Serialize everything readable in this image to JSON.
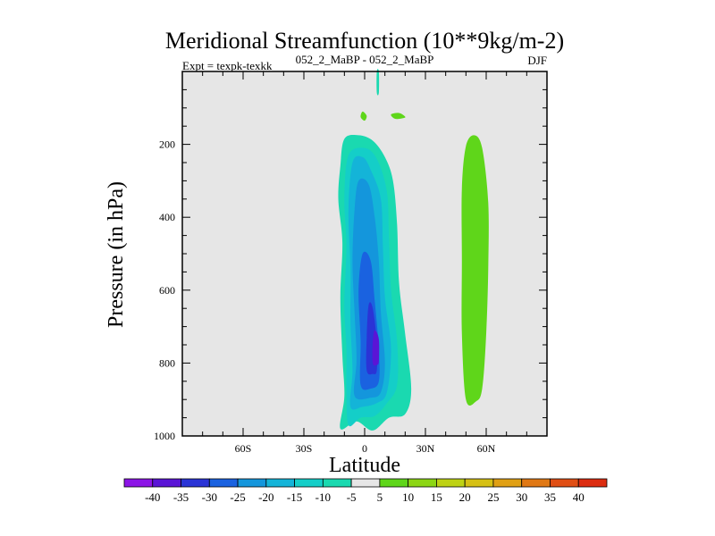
{
  "chart_data": {
    "type": "contour",
    "title": "Meridional Streamfunction (10**9kg/m-2)",
    "subtitle_left": "Expt = texpk-texkk",
    "subtitle_center": "052_2_MaBP - 052_2_MaBP",
    "subtitle_right": "DJF",
    "xlabel": "Latitude",
    "ylabel": "Pressure (in hPa)",
    "xlim": [
      -90,
      90
    ],
    "ylim": [
      1000,
      0
    ],
    "x_ticks": [
      {
        "value": -60,
        "label": "60S"
      },
      {
        "value": -30,
        "label": "30S"
      },
      {
        "value": 0,
        "label": "0"
      },
      {
        "value": 30,
        "label": "30N"
      },
      {
        "value": 60,
        "label": "60N"
      }
    ],
    "y_ticks": [
      {
        "value": 200,
        "label": "200"
      },
      {
        "value": 400,
        "label": "400"
      },
      {
        "value": 600,
        "label": "600"
      },
      {
        "value": 800,
        "label": "800"
      },
      {
        "value": 1000,
        "label": "1000"
      }
    ],
    "colorbar": {
      "levels": [
        "-40",
        "-35",
        "-30",
        "-25",
        "-20",
        "-15",
        "-10",
        "-5",
        "5",
        "10",
        "15",
        "20",
        "25",
        "30",
        "35",
        "40"
      ],
      "colors": [
        "#8c14e6",
        "#5a14d6",
        "#2a34d6",
        "#1a62e0",
        "#1496dc",
        "#14b4d8",
        "#14cec8",
        "#1ad9b0",
        "#e6e6e6",
        "#5fd61a",
        "#8cd614",
        "#bed214",
        "#d6c014",
        "#e0a014",
        "#e07814",
        "#e04e14",
        "#dc2c10"
      ]
    },
    "background_color": "#e6e6e6",
    "contours": [
      {
        "level": "-5 to 0",
        "color": "#1ad9b0",
        "points": [
          [
            -12,
            980
          ],
          [
            -10,
            890
          ],
          [
            -11,
            780
          ],
          [
            -12,
            620
          ],
          [
            -11,
            470
          ],
          [
            -13,
            350
          ],
          [
            -12,
            260
          ],
          [
            -10,
            185
          ],
          [
            -3,
            175
          ],
          [
            4,
            190
          ],
          [
            10,
            235
          ],
          [
            14,
            300
          ],
          [
            16,
            420
          ],
          [
            17,
            580
          ],
          [
            20,
            720
          ],
          [
            23,
            870
          ],
          [
            20,
            940
          ],
          [
            12,
            950
          ],
          [
            4,
            985
          ],
          [
            -4,
            960
          ]
        ]
      },
      {
        "level": "-10 to -5",
        "color": "#14cec8",
        "points": [
          [
            -8,
            970
          ],
          [
            -9,
            870
          ],
          [
            -9,
            760
          ],
          [
            -10,
            640
          ],
          [
            -9,
            480
          ],
          [
            -10,
            350
          ],
          [
            -8,
            230
          ],
          [
            0,
            210
          ],
          [
            6,
            240
          ],
          [
            11,
            330
          ],
          [
            12,
            460
          ],
          [
            13,
            600
          ],
          [
            16,
            740
          ],
          [
            16,
            860
          ],
          [
            11,
            910
          ],
          [
            5,
            945
          ],
          [
            -2,
            950
          ]
        ]
      },
      {
        "level": "-15 to -10",
        "color": "#14b4d8",
        "points": [
          [
            -7,
            920
          ],
          [
            -6,
            820
          ],
          [
            -7,
            690
          ],
          [
            -7,
            540
          ],
          [
            -8,
            380
          ],
          [
            -6,
            250
          ],
          [
            -1,
            235
          ],
          [
            3,
            270
          ],
          [
            8,
            350
          ],
          [
            9,
            480
          ],
          [
            10,
            620
          ],
          [
            13,
            760
          ],
          [
            11,
            880
          ],
          [
            6,
            910
          ],
          [
            -1,
            920
          ]
        ]
      },
      {
        "level": "-20 to -15",
        "color": "#1496dc",
        "points": [
          [
            -5,
            890
          ],
          [
            -4,
            790
          ],
          [
            -5,
            660
          ],
          [
            -6,
            520
          ],
          [
            -5,
            380
          ],
          [
            -3,
            300
          ],
          [
            2,
            310
          ],
          [
            5,
            400
          ],
          [
            7,
            520
          ],
          [
            8,
            660
          ],
          [
            10,
            800
          ],
          [
            8,
            880
          ],
          [
            3,
            895
          ]
        ]
      },
      {
        "level": "-25 to -20",
        "color": "#1a62e0",
        "points": [
          [
            -2,
            860
          ],
          [
            -2,
            740
          ],
          [
            -3,
            600
          ],
          [
            -1,
            500
          ],
          [
            3,
            520
          ],
          [
            5,
            630
          ],
          [
            7,
            760
          ],
          [
            7,
            850
          ],
          [
            3,
            870
          ]
        ]
      },
      {
        "level": "-30 to -25",
        "color": "#2a34d6",
        "points": [
          [
            1,
            820
          ],
          [
            1,
            730
          ],
          [
            2,
            640
          ],
          [
            4,
            650
          ],
          [
            6,
            740
          ],
          [
            6,
            820
          ],
          [
            4,
            830
          ]
        ]
      },
      {
        "level": "-35 to -30",
        "color": "#5a14d6",
        "points": [
          [
            4,
            800
          ],
          [
            4,
            740
          ],
          [
            5,
            710
          ],
          [
            7,
            735
          ],
          [
            7,
            795
          ],
          [
            6,
            805
          ]
        ]
      },
      {
        "level": "5 to 10",
        "color": "#5fd61a",
        "points": [
          [
            50,
            900
          ],
          [
            48,
            720
          ],
          [
            48,
            520
          ],
          [
            48,
            320
          ],
          [
            50,
            205
          ],
          [
            54,
            175
          ],
          [
            58,
            210
          ],
          [
            61,
            360
          ],
          [
            61,
            540
          ],
          [
            60,
            720
          ],
          [
            58,
            870
          ],
          [
            55,
            905
          ]
        ]
      },
      {
        "level": "5 to 10",
        "color": "#5fd61a",
        "points": [
          [
            -1,
            110
          ],
          [
            -2,
            125
          ],
          [
            0,
            135
          ],
          [
            1,
            122
          ]
        ]
      },
      {
        "level": "5 to 10",
        "color": "#5fd61a",
        "points": [
          [
            13,
            118
          ],
          [
            15,
            130
          ],
          [
            19,
            128
          ],
          [
            20,
            124
          ],
          [
            17,
            114
          ]
        ]
      },
      {
        "level": "-5 to 0",
        "color": "#1ad9b0",
        "points": [
          [
            6,
            0
          ],
          [
            7,
            0
          ],
          [
            7,
            58
          ],
          [
            6,
            58
          ]
        ]
      }
    ]
  }
}
